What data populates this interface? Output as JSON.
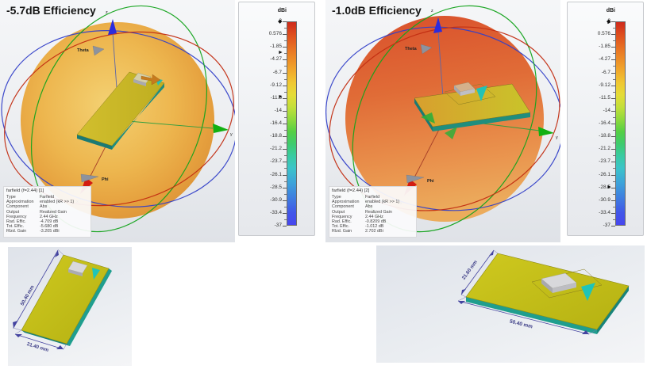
{
  "panels": {
    "left": {
      "title": "-5.7dB Efficiency",
      "scene": {
        "z": "z",
        "y": "y",
        "x": "x",
        "theta": "Theta",
        "phi": "Phi"
      },
      "info": {
        "header": "farfield (f=2.44) [1]",
        "rows": [
          {
            "label": "Type",
            "value": "Farfield"
          },
          {
            "label": "Approximation",
            "value": "enabled (kR >> 1)"
          },
          {
            "label": "Component",
            "value": "Abs"
          },
          {
            "label": "Output",
            "value": "Realized Gain"
          },
          {
            "label": "Frequency",
            "value": "2.44 GHz"
          },
          {
            "label": "Rad. Effic.",
            "value": "-4.709 dB"
          },
          {
            "label": "Tot. Effic.",
            "value": "-5.680 dB"
          },
          {
            "label": "Rlzd. Gain",
            "value": "-3.205 dBi"
          }
        ]
      },
      "colorbar": {
        "title": "dBi",
        "max": 3,
        "min": -37,
        "ticks": [
          "3",
          "0.576",
          "-1.85",
          "-4.27",
          "-6.7",
          "-9.12",
          "-11.5",
          "-14",
          "-16.4",
          "-18.8",
          "-21.2",
          "-23.7",
          "-26.1",
          "-28.5",
          "-30.9",
          "-33.4",
          "-37"
        ],
        "markers": [
          {
            "shape": "diamond",
            "value": 3
          },
          {
            "shape": "triangle",
            "value": -3.2
          },
          {
            "shape": "triangle",
            "value": -11.8
          }
        ]
      }
    },
    "right": {
      "title": "-1.0dB Efficiency",
      "scene": {
        "z": "z",
        "y": "y",
        "x": "x",
        "theta": "Theta",
        "phi": "Phi"
      },
      "info": {
        "header": "farfield (f=2.44) [2]",
        "rows": [
          {
            "label": "Type",
            "value": "Farfield"
          },
          {
            "label": "Approximation",
            "value": "enabled (kR >> 1)"
          },
          {
            "label": "Component",
            "value": "Abs"
          },
          {
            "label": "Output",
            "value": "Realized Gain"
          },
          {
            "label": "Frequency",
            "value": "2.44 GHz"
          },
          {
            "label": "Rad. Effic.",
            "value": "-0.8209 dB"
          },
          {
            "label": "Tot. Effic.",
            "value": "-1.012 dB"
          },
          {
            "label": "Rlzd. Gain",
            "value": "2.702 dBi"
          }
        ]
      },
      "colorbar": {
        "title": "dBi",
        "max": 3,
        "min": -37,
        "ticks": [
          "3",
          "0.576",
          "-1.85",
          "-4.27",
          "-6.7",
          "-9.12",
          "-11.5",
          "-14",
          "-16.4",
          "-18.8",
          "-21.2",
          "-23.7",
          "-26.1",
          "-28.5",
          "-30.9",
          "-33.4",
          "-37"
        ],
        "markers": [
          {
            "shape": "diamond",
            "value": 3
          },
          {
            "shape": "triangle",
            "value": 2.7
          },
          {
            "shape": "triangle",
            "value": -29.5
          }
        ]
      }
    }
  },
  "models": {
    "left": {
      "length_label": "50.40 mm",
      "width_label": "21.40 mm"
    },
    "right": {
      "width_label": "21.60 mm",
      "length_label": "50.40 mm"
    }
  },
  "colors": {
    "pcb_top": "#c2bd17",
    "pcb_edge_teal": "#1f8e7e",
    "antenna_cyan": "#22c2b4",
    "dimension_line": "#4444a0",
    "balloon_left": "#edb449",
    "balloon_right": "#dd4f28",
    "axis_x_red": "#d31d12",
    "axis_y_green": "#12b012",
    "axis_z_blue": "#2b2bdd"
  }
}
